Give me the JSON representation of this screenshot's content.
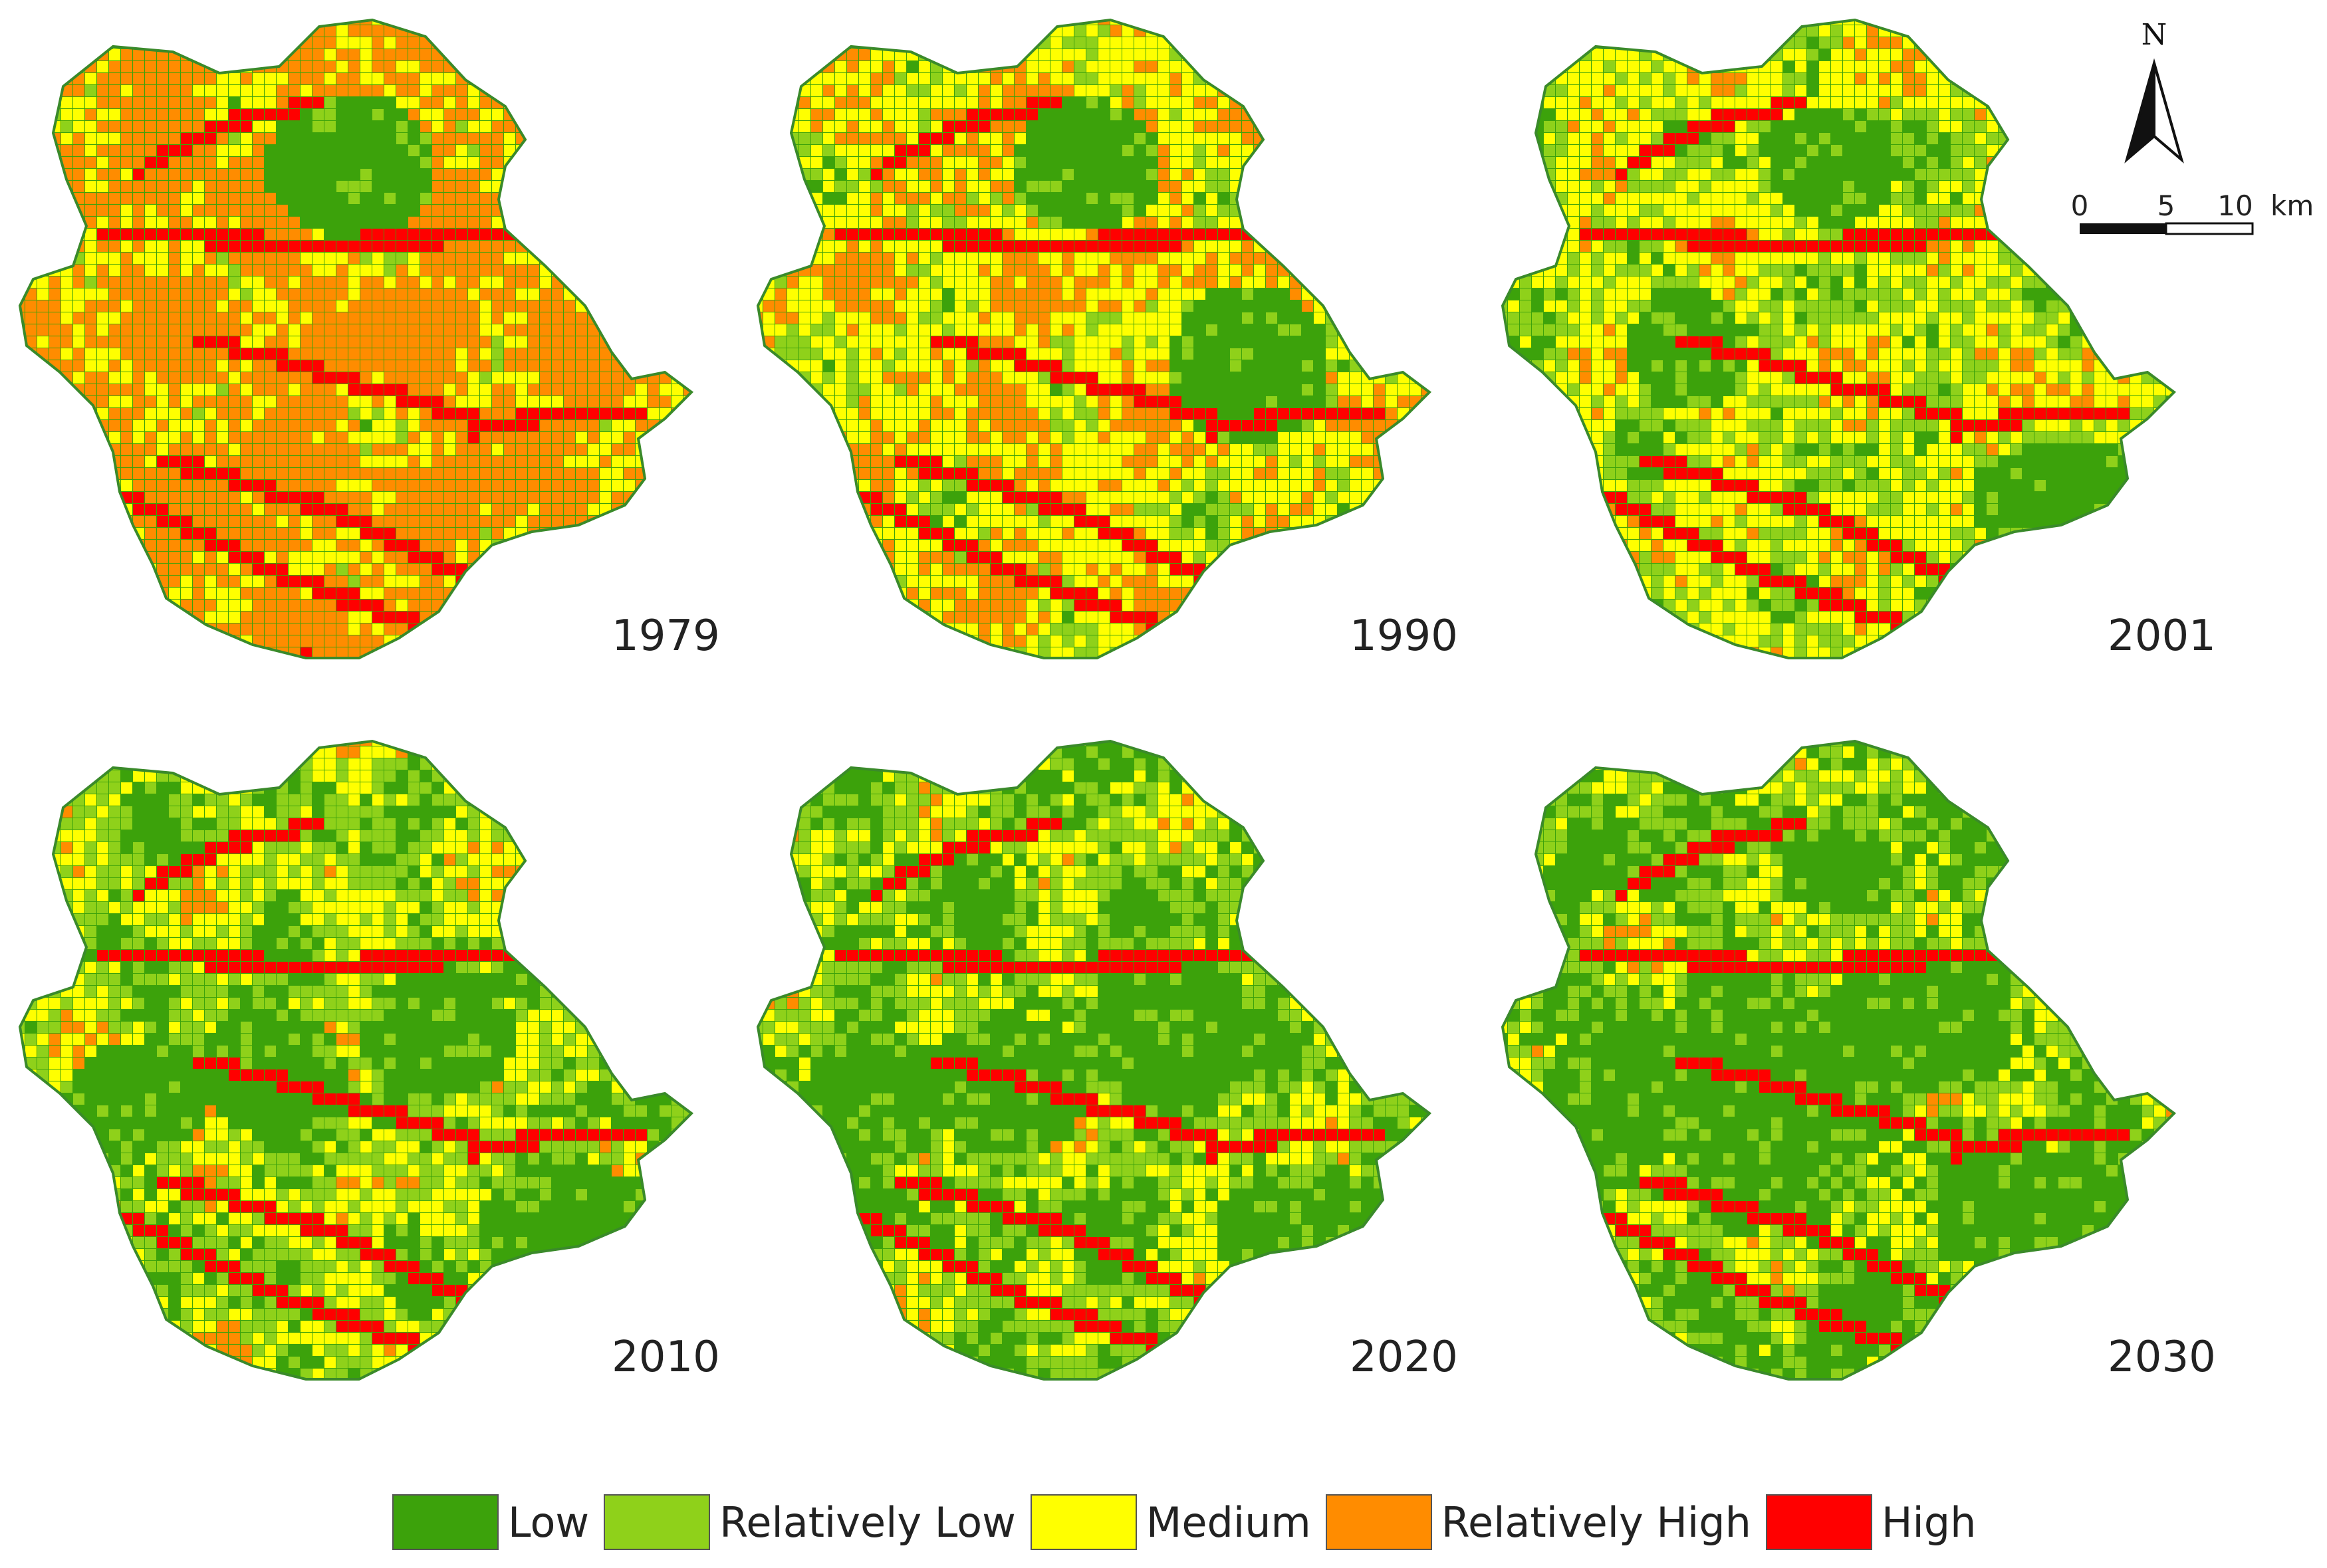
{
  "panels": [
    {
      "year": "1979",
      "low": 0.1,
      "rlow": 0.2,
      "med": 0.4,
      "rhigh": 0.97,
      "blobs": 3
    },
    {
      "year": "1990",
      "low": 0.18,
      "rlow": 0.33,
      "med": 0.58,
      "rhigh": 0.97,
      "blobs": 2
    },
    {
      "year": "2001",
      "low": 0.26,
      "rlow": 0.45,
      "med": 0.7,
      "rhigh": 0.97,
      "blobs": 3
    },
    {
      "year": "2010",
      "low": 0.36,
      "rlow": 0.55,
      "med": 0.76,
      "rhigh": 0.97,
      "blobs": 4
    },
    {
      "year": "2020",
      "low": 0.42,
      "rlow": 0.6,
      "med": 0.8,
      "rhigh": 0.97,
      "blobs": 4
    },
    {
      "year": "2030",
      "low": 0.48,
      "rlow": 0.64,
      "med": 0.82,
      "rhigh": 0.97,
      "blobs": 4
    }
  ],
  "north": "N",
  "scale": {
    "ticks": [
      "0",
      "5",
      "10"
    ],
    "unit": "km"
  },
  "legend": [
    {
      "label": "Low",
      "color": "#3ca20b"
    },
    {
      "label": "Relatively Low",
      "color": "#8fd11a"
    },
    {
      "label": "Medium",
      "color": "#ffff00"
    },
    {
      "label": "Relatively High",
      "color": "#ff8c00"
    },
    {
      "label": "High",
      "color": "#ff0000"
    }
  ]
}
